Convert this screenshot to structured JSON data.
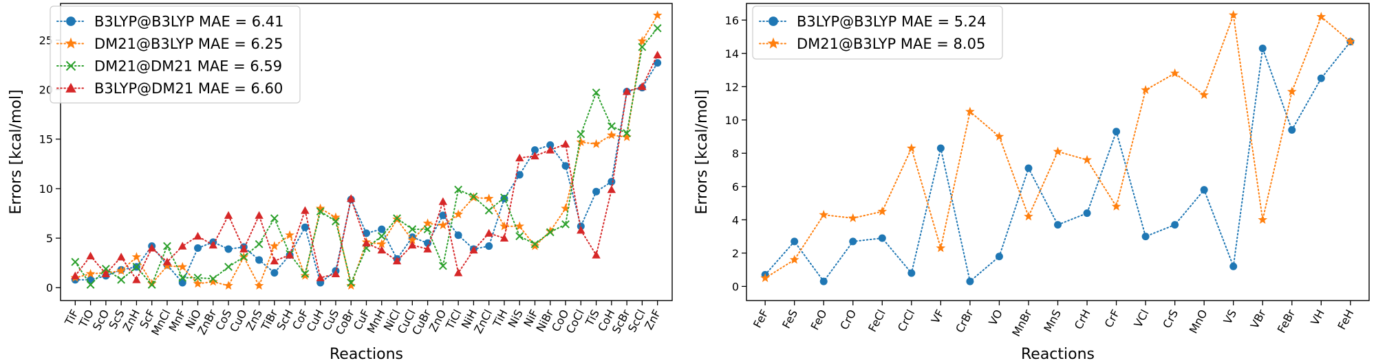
{
  "chart_data": [
    {
      "type": "line",
      "xlabel": "Reactions",
      "ylabel": "Errors [kcal/mol]",
      "ylim": [
        -1.3,
        28.7
      ],
      "yticks": [
        0,
        5,
        10,
        15,
        20,
        25
      ],
      "legend_position": "top-left",
      "line_style": "dotted",
      "categories": [
        "TiF",
        "TiO",
        "ScO",
        "ScS",
        "ZnH",
        "ScF",
        "MnCl",
        "MnF",
        "NiO",
        "ZnBr",
        "CoS",
        "CuO",
        "ZnS",
        "TiBr",
        "ScH",
        "CoF",
        "CuH",
        "CuS",
        "CoBr",
        "CuF",
        "MnH",
        "NiCl",
        "CuCl",
        "CuBr",
        "ZnO",
        "TiCl",
        "NiH",
        "ZnCl",
        "TiH",
        "NiS",
        "NiF",
        "NiBr",
        "CoO",
        "CoCl",
        "TiS",
        "CoH",
        "ScBr",
        "ScCl",
        "ZnF"
      ],
      "series": [
        {
          "name": "B3LYP@B3LYP MAE = 6.41",
          "color": "#1f77b4",
          "marker": "circle",
          "values": [
            0.8,
            0.8,
            1.2,
            1.8,
            2.1,
            4.2,
            2.3,
            0.5,
            4.0,
            4.6,
            3.9,
            4.1,
            2.8,
            1.5,
            3.3,
            6.1,
            0.5,
            1.7,
            8.9,
            5.5,
            5.9,
            2.9,
            5.1,
            4.5,
            7.3,
            5.3,
            3.9,
            4.2,
            9.0,
            11.4,
            13.9,
            14.4,
            12.3,
            6.2,
            9.7,
            10.7,
            19.8,
            20.2,
            22.7
          ]
        },
        {
          "name": "DM21@B3LYP MAE = 6.25",
          "color": "#ff7f0e",
          "marker": "star",
          "values": [
            1.0,
            1.4,
            1.5,
            1.7,
            3.1,
            0.4,
            2.2,
            2.1,
            0.4,
            0.6,
            0.2,
            3.1,
            0.2,
            4.2,
            5.3,
            1.2,
            8.0,
            7.1,
            0.2,
            4.6,
            4.4,
            6.9,
            4.8,
            6.5,
            6.3,
            7.4,
            9.1,
            9.0,
            6.2,
            6.2,
            4.2,
            5.7,
            8.0,
            14.7,
            14.5,
            15.4,
            15.2,
            24.9,
            27.5
          ]
        },
        {
          "name": "DM21@DM21 MAE = 6.59",
          "color": "#2ca02c",
          "marker": "x",
          "values": [
            2.6,
            0.3,
            1.9,
            0.8,
            2.1,
            0.3,
            4.2,
            1.0,
            1.0,
            0.9,
            2.1,
            3.1,
            4.4,
            7.0,
            3.4,
            1.4,
            7.7,
            6.7,
            0.5,
            4.0,
            5.2,
            7.0,
            5.9,
            5.9,
            2.2,
            9.9,
            9.2,
            7.8,
            9.1,
            5.2,
            4.4,
            5.6,
            6.4,
            15.5,
            19.7,
            16.3,
            15.6,
            24.3,
            26.2
          ]
        },
        {
          "name": "B3LYP@DM21 MAE = 6.60",
          "color": "#d62728",
          "marker": "triangle",
          "values": [
            1.2,
            3.2,
            1.4,
            3.1,
            0.8,
            4.0,
            2.6,
            4.2,
            5.2,
            4.3,
            7.3,
            3.9,
            7.3,
            2.7,
            3.3,
            7.8,
            1.0,
            1.4,
            9.0,
            4.5,
            3.8,
            2.7,
            4.3,
            3.9,
            8.7,
            1.5,
            3.8,
            5.5,
            5.0,
            13.1,
            13.3,
            13.9,
            14.5,
            5.8,
            3.3,
            9.9,
            19.8,
            20.3,
            23.5
          ]
        }
      ]
    },
    {
      "type": "line",
      "xlabel": "Reactions",
      "ylabel": "Errors [kcal/mol]",
      "ylim": [
        -0.85,
        17.0
      ],
      "yticks": [
        0,
        2,
        4,
        6,
        8,
        10,
        12,
        14,
        16
      ],
      "legend_position": "top-left",
      "line_style": "dotted",
      "categories": [
        "FeF",
        "FeS",
        "FeO",
        "CrO",
        "FeCl",
        "CrCl",
        "VF",
        "CrBr",
        "VO",
        "MnBr",
        "MnS",
        "CrH",
        "CrF",
        "VCl",
        "CrS",
        "MnO",
        "VS",
        "VBr",
        "FeBr",
        "VH",
        "FeH"
      ],
      "series": [
        {
          "name": "B3LYP@B3LYP MAE = 5.24",
          "color": "#1f77b4",
          "marker": "circle",
          "values": [
            0.7,
            2.7,
            0.3,
            2.7,
            2.9,
            0.8,
            8.3,
            0.3,
            1.8,
            7.1,
            3.7,
            4.4,
            9.3,
            3.0,
            3.7,
            5.8,
            1.2,
            14.3,
            9.4,
            12.5,
            14.7
          ]
        },
        {
          "name": "DM21@B3LYP MAE = 8.05",
          "color": "#ff7f0e",
          "marker": "star",
          "values": [
            0.5,
            1.6,
            4.3,
            4.1,
            4.5,
            8.3,
            2.3,
            10.5,
            9.0,
            4.2,
            8.1,
            7.6,
            4.8,
            11.8,
            12.8,
            11.5,
            16.3,
            4.0,
            11.7,
            16.2,
            14.7
          ]
        }
      ]
    }
  ]
}
